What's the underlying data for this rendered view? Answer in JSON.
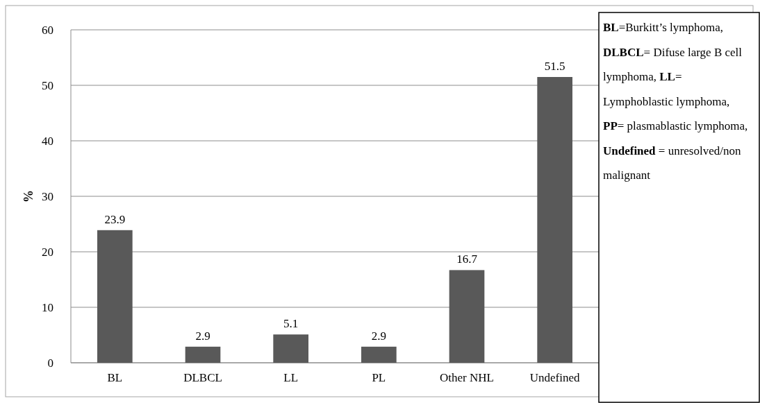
{
  "chart_data": {
    "type": "bar",
    "ylabel": "%",
    "categories": [
      "BL",
      "DLBCL",
      "LL",
      "PL",
      "Other NHL",
      "Undefined"
    ],
    "values": [
      23.9,
      2.9,
      5.1,
      2.9,
      16.7,
      51.5
    ],
    "color": "#595959",
    "ylim": [
      0,
      60
    ],
    "yticks": [
      0,
      10,
      20,
      30,
      40,
      50,
      60
    ],
    "grid": "y",
    "data_labels": true,
    "annotations": [
      "BL=Burkitt’s lymphoma,",
      "DLBCL= Difuse large B cell lymphoma,",
      "LL= Lymphoblastic lymphoma,",
      "PP= plasmablastic lymphoma,",
      "Undefined = unresolved/non malignant"
    ]
  }
}
